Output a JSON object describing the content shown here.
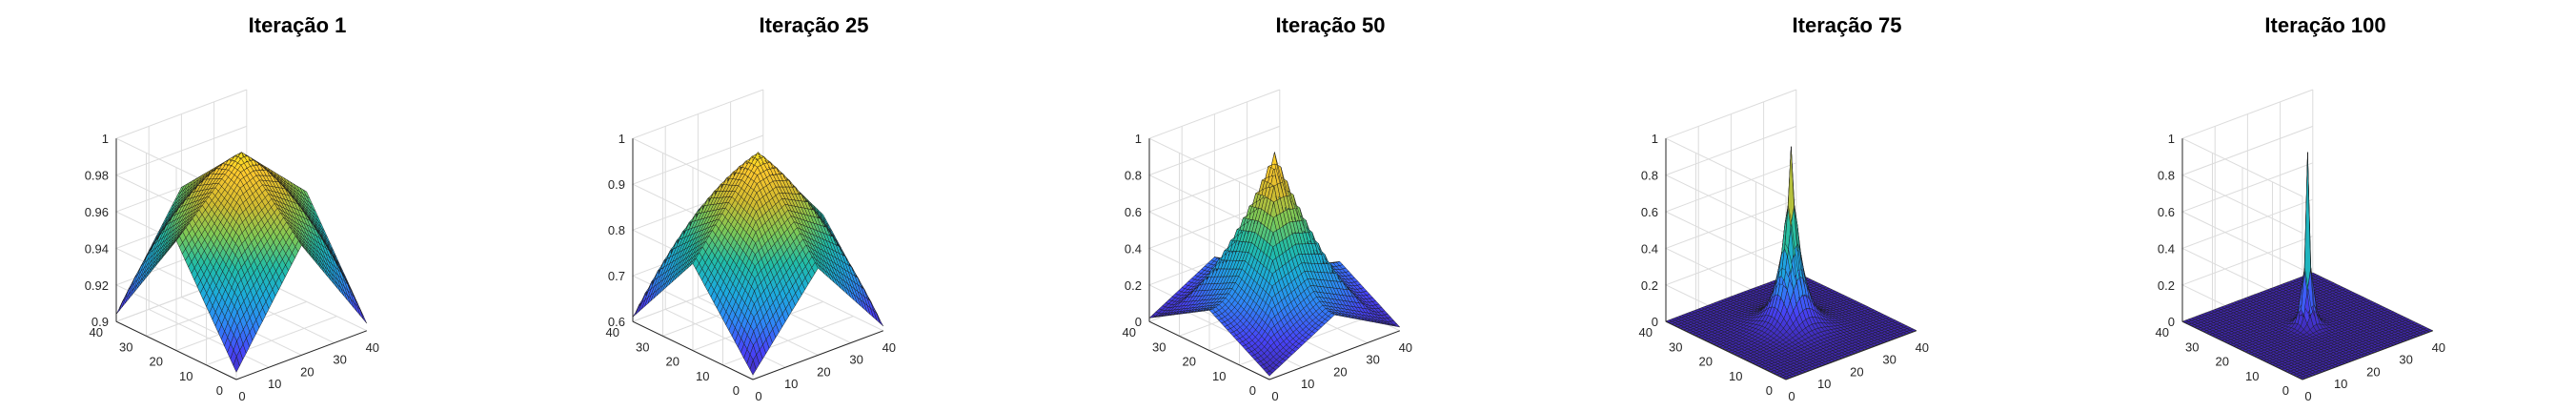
{
  "figure": {
    "colormap": [
      "#3e26a8",
      "#4743f8",
      "#2e87f7",
      "#1cabdc",
      "#21bda6",
      "#7dc956",
      "#d0bb30",
      "#fdc72e",
      "#f9fb15"
    ],
    "edge_color": "#1a1a1a",
    "axis_color": "#262626",
    "grid_color": "#dcdcdc"
  },
  "chart_data": [
    {
      "type": "surface",
      "title": "Iteração 1",
      "grid_size": 40,
      "x_ticks": [
        "0",
        "10",
        "20",
        "30",
        "40"
      ],
      "y_ticks": [
        "0",
        "10",
        "20",
        "30",
        "40"
      ],
      "zlim": [
        0.9,
        1.0
      ],
      "z_ticks": [
        "0.9",
        "0.92",
        "0.94",
        "0.96",
        "0.98",
        "1"
      ],
      "peak": [
        20,
        20
      ],
      "peak_value": 0.995,
      "corner_value": 0.904,
      "edge_mid_value": 0.96,
      "shape": "pyramid"
    },
    {
      "type": "surface",
      "title": "Iteração 25",
      "grid_size": 40,
      "x_ticks": [
        "0",
        "10",
        "20",
        "30",
        "40"
      ],
      "y_ticks": [
        "0",
        "10",
        "20",
        "30",
        "40"
      ],
      "zlim": [
        0.6,
        1.0
      ],
      "z_ticks": [
        "0.6",
        "0.7",
        "0.8",
        "0.9",
        "1"
      ],
      "peak": [
        20,
        20
      ],
      "peak_value": 0.98,
      "corner_value": 0.61,
      "edge_mid_value": 0.79,
      "shape": "pyramid"
    },
    {
      "type": "surface",
      "title": "Iteração 50",
      "grid_size": 40,
      "x_ticks": [
        "0",
        "10",
        "20",
        "30",
        "40"
      ],
      "y_ticks": [
        "0",
        "10",
        "20",
        "30",
        "40"
      ],
      "zlim": [
        0,
        1.0
      ],
      "z_ticks": [
        "0",
        "0.2",
        "0.4",
        "0.6",
        "0.8",
        "1"
      ],
      "peak": [
        20,
        20
      ],
      "peak_value": 0.95,
      "corner_value": 0.02,
      "edge_mid_value": 0.22,
      "shape": "concave"
    },
    {
      "type": "surface",
      "title": "Iteração 75",
      "grid_size": 40,
      "x_ticks": [
        "0",
        "10",
        "20",
        "30",
        "40"
      ],
      "y_ticks": [
        "0",
        "10",
        "20",
        "30",
        "40"
      ],
      "zlim": [
        0,
        1.0
      ],
      "z_ticks": [
        "0",
        "0.2",
        "0.4",
        "0.6",
        "0.8",
        "1"
      ],
      "peak": [
        20,
        20
      ],
      "peak_value": 0.95,
      "corner_value": 0.0,
      "edge_mid_value": 0.0,
      "shape": "spike"
    },
    {
      "type": "surface",
      "title": "Iteração 100",
      "grid_size": 40,
      "x_ticks": [
        "0",
        "10",
        "20",
        "30",
        "40"
      ],
      "y_ticks": [
        "0",
        "10",
        "20",
        "30",
        "40"
      ],
      "zlim": [
        0,
        1.0
      ],
      "z_ticks": [
        "0",
        "0.2",
        "0.4",
        "0.6",
        "0.8",
        "1"
      ],
      "peak": [
        20,
        20
      ],
      "peak_value": 0.95,
      "corner_value": 0.0,
      "edge_mid_value": 0.0,
      "shape": "needle"
    }
  ]
}
